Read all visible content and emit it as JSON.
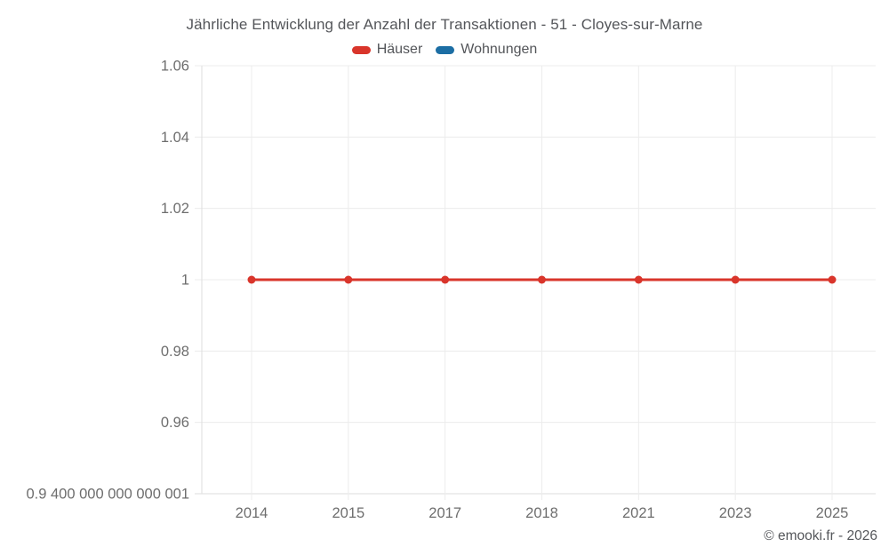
{
  "chart_data": {
    "type": "line",
    "title": "Jährliche Entwicklung der Anzahl der Transaktionen - 51 - Cloyes-sur-Marne",
    "categories": [
      "2014",
      "2015",
      "2017",
      "2018",
      "2021",
      "2023",
      "2025"
    ],
    "series": [
      {
        "name": "Häuser",
        "color": "#d9352b",
        "values": [
          1,
          1,
          1,
          1,
          1,
          1,
          1
        ]
      },
      {
        "name": "Wohnungen",
        "color": "#1c6ea4",
        "values": []
      }
    ],
    "y_ticks": [
      {
        "value": 1.06,
        "label": "1.06"
      },
      {
        "value": 1.04,
        "label": "1.04"
      },
      {
        "value": 1.02,
        "label": "1.02"
      },
      {
        "value": 1.0,
        "label": "1"
      },
      {
        "value": 0.98,
        "label": "0.98"
      },
      {
        "value": 0.96,
        "label": "0.96"
      },
      {
        "value": 0.94,
        "label": "0.9 400 000 000 000 001"
      }
    ],
    "ylim": [
      0.94,
      1.06
    ],
    "grid": true,
    "legend_position": "top",
    "marker": "circle",
    "grid_color": "#ececec",
    "axis_color": "#dedede",
    "tick_label_color": "#6e6e6e"
  },
  "footer": {
    "copyright": "© emooki.fr - 2026"
  }
}
